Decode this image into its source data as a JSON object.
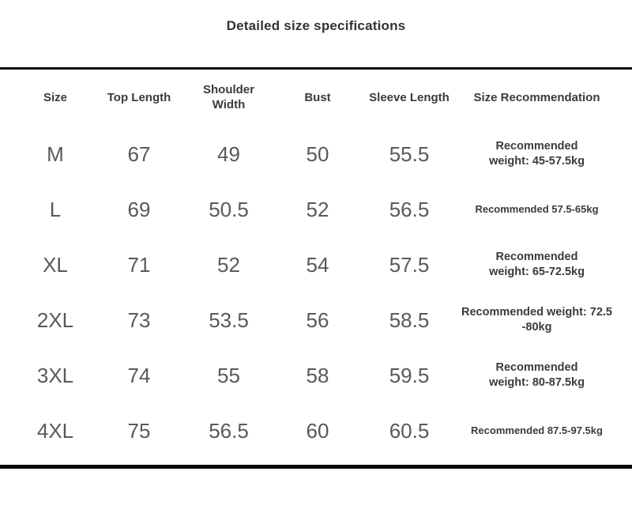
{
  "title": "Detailed size specifications",
  "colors": {
    "background": "#ffffff",
    "rule": "#0e0e0e",
    "title_text": "#333333",
    "header_text": "#3b3b3b",
    "value_text": "#595959"
  },
  "table": {
    "headers": {
      "size": "Size",
      "top_length": "Top Length",
      "shoulder_width": "Shoulder\nWidth",
      "bust": "Bust",
      "sleeve_length": "Sleeve Length",
      "recommendation": "Size Recommendation"
    },
    "rows": [
      {
        "size": "M",
        "top_length": "67",
        "shoulder_width": "49",
        "bust": "50",
        "sleeve_length": "55.5",
        "recommendation": "Recommended\nweight: 45-57.5kg"
      },
      {
        "size": "L",
        "top_length": "69",
        "shoulder_width": "50.5",
        "bust": "52",
        "sleeve_length": "56.5",
        "recommendation": "Recommended 57.5-65kg"
      },
      {
        "size": "XL",
        "top_length": "71",
        "shoulder_width": "52",
        "bust": "54",
        "sleeve_length": "57.5",
        "recommendation": "Recommended\nweight: 65-72.5kg"
      },
      {
        "size": "2XL",
        "top_length": "73",
        "shoulder_width": "53.5",
        "bust": "56",
        "sleeve_length": "58.5",
        "recommendation": "Recommended weight: 72.5\n-80kg"
      },
      {
        "size": "3XL",
        "top_length": "74",
        "shoulder_width": "55",
        "bust": "58",
        "sleeve_length": "59.5",
        "recommendation": "Recommended\nweight: 80-87.5kg"
      },
      {
        "size": "4XL",
        "top_length": "75",
        "shoulder_width": "56.5",
        "bust": "60",
        "sleeve_length": "60.5",
        "recommendation": "Recommended 87.5-97.5kg"
      }
    ]
  }
}
